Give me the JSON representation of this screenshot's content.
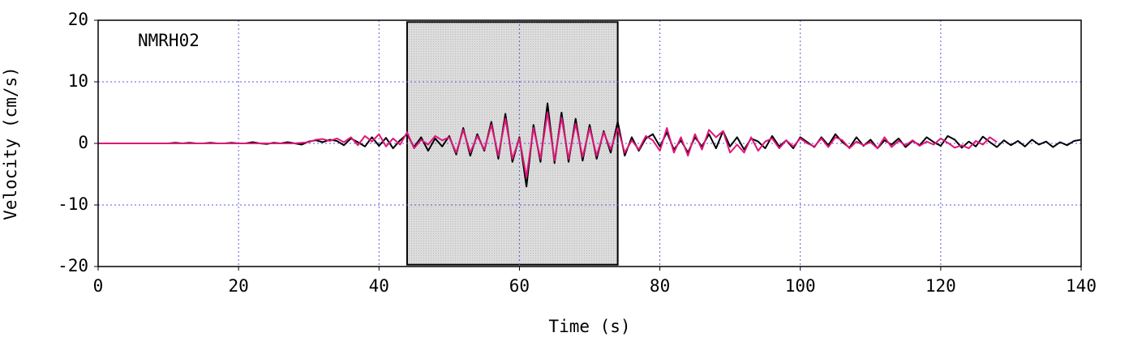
{
  "chart_data": {
    "type": "line",
    "annotation": "NMRH02",
    "x_label": "Time (s)",
    "y_label": "Velocity (cm/s)",
    "xlim": [
      0,
      140
    ],
    "xticks": [
      0,
      20,
      40,
      60,
      80,
      100,
      120,
      140
    ],
    "ylim": [
      -20,
      20
    ],
    "yticks": [
      -20,
      -10,
      0,
      10,
      20
    ],
    "grid": true,
    "highlight": {
      "x": [
        44,
        74
      ],
      "y": [
        -19.7,
        19.7
      ],
      "color": "#dcdcdc"
    },
    "x": [
      0,
      1,
      2,
      3,
      4,
      5,
      6,
      7,
      8,
      9,
      10,
      11,
      12,
      13,
      14,
      15,
      16,
      17,
      18,
      19,
      20,
      21,
      22,
      23,
      24,
      25,
      26,
      27,
      28,
      29,
      30,
      31,
      32,
      33,
      34,
      35,
      36,
      37,
      38,
      39,
      40,
      41,
      42,
      43,
      44,
      45,
      46,
      47,
      48,
      49,
      50,
      51,
      52,
      53,
      54,
      55,
      56,
      57,
      58,
      59,
      60,
      61,
      62,
      63,
      64,
      65,
      66,
      67,
      68,
      69,
      70,
      71,
      72,
      73,
      74,
      75,
      76,
      77,
      78,
      79,
      80,
      81,
      82,
      83,
      84,
      85,
      86,
      87,
      88,
      89,
      90,
      91,
      92,
      93,
      94,
      95,
      96,
      97,
      98,
      99,
      100,
      101,
      102,
      103,
      104,
      105,
      106,
      107,
      108,
      109,
      110,
      111,
      112,
      113,
      114,
      115,
      116,
      117,
      118,
      119,
      120,
      121,
      122,
      123,
      124,
      125,
      126,
      127,
      128,
      129,
      130,
      131,
      132,
      133,
      134,
      135,
      136,
      137,
      138,
      139,
      140
    ],
    "series": [
      {
        "color": "#000000",
        "values": [
          0,
          0,
          0,
          0,
          0,
          0,
          0,
          0,
          0,
          0,
          0,
          0.1,
          0,
          0.1,
          0,
          0,
          0.1,
          0,
          0,
          0.1,
          0,
          0,
          0.2,
          0,
          -0.1,
          0.1,
          0,
          0.2,
          0,
          -0.2,
          0.3,
          0.5,
          0.2,
          0.6,
          0.4,
          -0.3,
          0.8,
          0.2,
          -0.5,
          1.0,
          -0.4,
          0.9,
          -0.8,
          0.5,
          1.5,
          -0.6,
          1.0,
          -1.2,
          0.8,
          -0.5,
          1.2,
          -1.8,
          2.5,
          -2.0,
          1.5,
          -1.2,
          3.5,
          -2.5,
          4.8,
          -3.0,
          1.0,
          -7.0,
          3.0,
          -3.0,
          6.5,
          -3.2,
          5.0,
          -3.0,
          4.0,
          -2.8,
          3.0,
          -2.5,
          2.0,
          -1.5,
          3.5,
          -2.0,
          1.0,
          -1.2,
          0.8,
          1.5,
          -0.5,
          1.8,
          -1.0,
          0.5,
          -1.5,
          1.0,
          -0.5,
          1.5,
          -0.8,
          2.0,
          -0.5,
          1.0,
          -1.0,
          0.8,
          0.3,
          -0.8,
          1.2,
          -0.5,
          0.5,
          -0.8,
          1.0,
          0.2,
          -0.6,
          1.0,
          -0.3,
          1.5,
          0.2,
          -0.7,
          1.0,
          -0.4,
          0.6,
          -0.8,
          0.5,
          -0.2,
          0.8,
          -0.6,
          0.4,
          -0.3,
          1.0,
          0.2,
          -0.4,
          1.2,
          0.6,
          -0.7,
          0.3,
          -0.5,
          1.1,
          0.2,
          -0.6,
          0.5,
          -0.3,
          0.4,
          -0.5,
          0.6,
          -0.2,
          0.3,
          -0.6,
          0.2,
          -0.3,
          0.4,
          0.6
        ]
      },
      {
        "color": "#e0157a",
        "values": [
          0,
          0,
          0,
          0,
          0,
          0,
          0,
          0,
          0,
          0,
          0,
          0,
          0,
          0,
          0,
          0,
          0,
          0,
          0,
          0,
          0,
          0,
          0,
          0,
          0,
          0,
          0,
          0,
          0,
          0.1,
          0.2,
          0.6,
          0.7,
          0.4,
          0.8,
          0.2,
          1.0,
          -0.3,
          1.2,
          0.3,
          1.5,
          -0.5,
          0.8,
          -0.2,
          1.8,
          -0.8,
          0.6,
          -0.2,
          1.2,
          0.5,
          1.0,
          -1.5,
          2.2,
          -1.5,
          1.2,
          -1.0,
          3.0,
          -2.0,
          4.0,
          -2.5,
          0.8,
          -5.5,
          2.5,
          -2.5,
          5.0,
          -2.8,
          4.2,
          -2.5,
          3.2,
          -2.2,
          2.5,
          -2.0,
          1.8,
          -1.0,
          2.5,
          -1.5,
          0.5,
          -1.0,
          1.2,
          0.5,
          -1.2,
          2.5,
          -1.5,
          1.0,
          -2.0,
          1.5,
          -1.0,
          2.2,
          1.0,
          2.0,
          -1.5,
          -0.2,
          -1.5,
          1.0,
          -1.2,
          0.3,
          0.8,
          -0.8,
          0.5,
          -0.5,
          0.8,
          0,
          -0.5,
          0.8,
          -0.6,
          1.0,
          0.5,
          -0.8,
          0.3,
          -0.3,
          0.2,
          -0.8,
          1.0,
          -0.6,
          0.4,
          -0.3,
          0.5,
          -0.4,
          0.3,
          -0.2,
          0.8,
          0.1,
          -0.7,
          -0.3,
          -0.8,
          0.4,
          -0.2,
          1.0,
          0.2,
          null,
          null,
          null,
          null,
          null,
          null,
          null,
          null,
          null,
          null,
          null,
          null
        ]
      }
    ]
  }
}
